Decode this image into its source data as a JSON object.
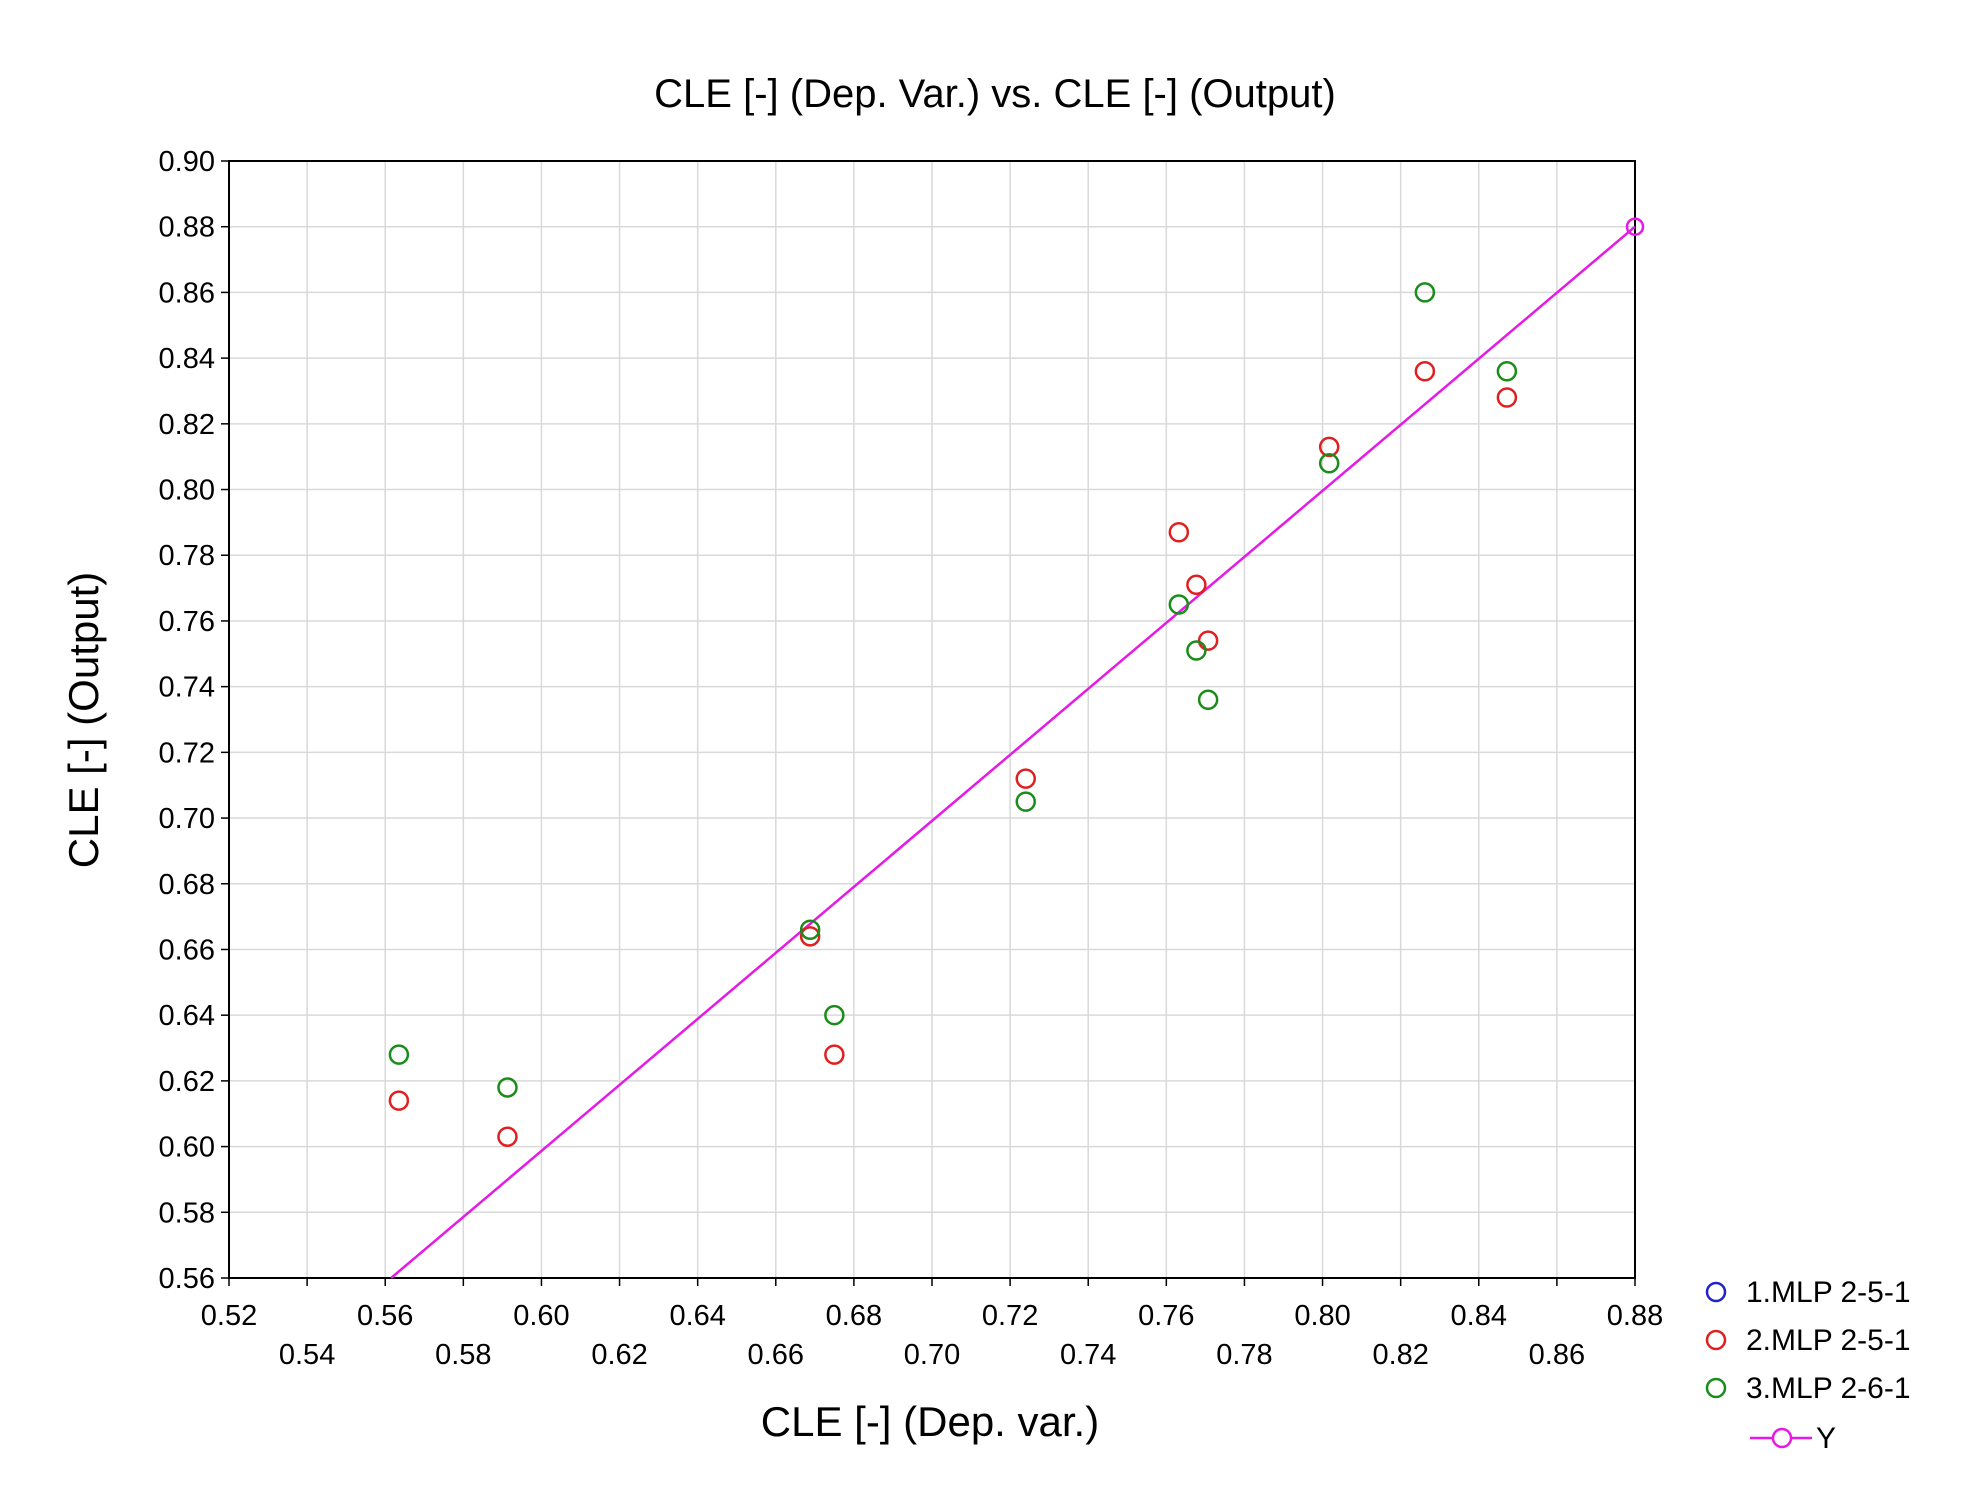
{
  "chart_data": {
    "type": "scatter",
    "title": "CLE [-] (Dep. Var.) vs. CLE [-] (Output)",
    "xlabel": "CLE [-] (Dep. var.)",
    "ylabel": "CLE [-] (Output)",
    "xlim": [
      0.52,
      0.88
    ],
    "ylim": [
      0.56,
      0.9
    ],
    "grid": true,
    "legend_position": "bottom-right outside",
    "x_ticks_upper": [
      "0.52",
      "0.56",
      "0.60",
      "0.64",
      "0.68",
      "0.72",
      "0.76",
      "0.80",
      "0.84",
      "0.88"
    ],
    "x_ticks_lower": [
      "0.54",
      "0.58",
      "0.62",
      "0.66",
      "0.70",
      "0.74",
      "0.78",
      "0.82",
      "0.86"
    ],
    "y_ticks": [
      "0.56",
      "0.58",
      "0.60",
      "0.62",
      "0.64",
      "0.66",
      "0.68",
      "0.70",
      "0.72",
      "0.74",
      "0.76",
      "0.78",
      "0.80",
      "0.82",
      "0.84",
      "0.86",
      "0.88",
      "0.90"
    ],
    "series": [
      {
        "name": "1.MLP 2-5-1",
        "color": "#2222cc",
        "marker": "circle",
        "x": [],
        "y": []
      },
      {
        "name": "2.MLP 2-5-1",
        "color": "#e02020",
        "marker": "circle",
        "x": [
          0.5635,
          0.5913,
          0.6688,
          0.675,
          0.724,
          0.7632,
          0.7677,
          0.7707,
          0.8017,
          0.8262,
          0.8472
        ],
        "y": [
          0.614,
          0.603,
          0.664,
          0.628,
          0.712,
          0.787,
          0.771,
          0.754,
          0.813,
          0.836,
          0.828
        ]
      },
      {
        "name": "3.MLP 2-6-1",
        "color": "#1a8c1a",
        "marker": "circle",
        "x": [
          0.5635,
          0.5913,
          0.6688,
          0.675,
          0.724,
          0.7632,
          0.7677,
          0.7707,
          0.8017,
          0.8262,
          0.8472
        ],
        "y": [
          0.628,
          0.618,
          0.666,
          0.64,
          0.705,
          0.765,
          0.751,
          0.736,
          0.808,
          0.86,
          0.836
        ]
      }
    ],
    "reference_line": {
      "name": "Y",
      "color": "#e619e6",
      "x": [
        0.5615,
        0.88
      ],
      "y": [
        0.56,
        0.88
      ]
    }
  }
}
